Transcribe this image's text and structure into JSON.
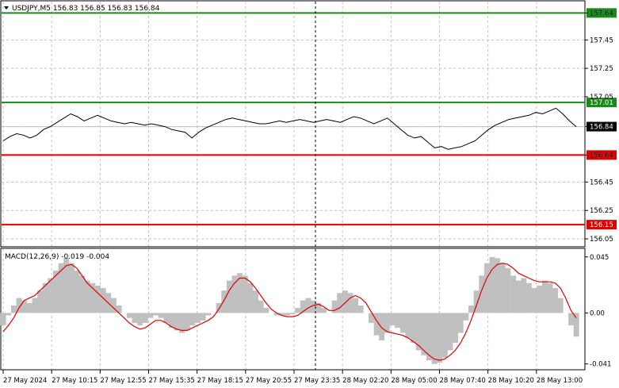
{
  "header": {
    "symbol_line": "USDJPY,M5  156.83 156.85 156.83 156.84"
  },
  "colors": {
    "background": "#ffffff",
    "grid": "#c0c0c0",
    "frame": "#000000",
    "price_line": "#000000",
    "green_level": "#1a8a1a",
    "red_level": "#e00000",
    "histogram": "#c0c0c0",
    "signal": "#e00000",
    "current_price_line": "#c0c0c0"
  },
  "chart_data": [
    {
      "type": "line",
      "name": "price",
      "ylim": [
        156.0,
        157.72
      ],
      "y_ticks": [
        "157.64",
        "157.45",
        "157.25",
        "157.05",
        "156.84",
        "156.64",
        "156.45",
        "156.25",
        "156.05"
      ],
      "levels": [
        {
          "value": 157.64,
          "label": "157.64",
          "color": "#1a8a1a"
        },
        {
          "value": 157.01,
          "label": "157.01",
          "color": "#1a8a1a"
        },
        {
          "value": 156.64,
          "label": "156.64",
          "color": "#e00000"
        },
        {
          "value": 156.15,
          "label": "156.15",
          "color": "#e00000"
        }
      ],
      "current_price": {
        "value": 156.84,
        "label": "156.84"
      },
      "values": [
        156.74,
        156.77,
        156.79,
        156.78,
        156.76,
        156.78,
        156.82,
        156.84,
        156.87,
        156.9,
        156.93,
        156.91,
        156.88,
        156.9,
        156.92,
        156.9,
        156.88,
        156.87,
        156.86,
        156.87,
        156.86,
        156.85,
        156.86,
        156.85,
        156.84,
        156.82,
        156.81,
        156.8,
        156.76,
        156.8,
        156.83,
        156.85,
        156.87,
        156.89,
        156.9,
        156.89,
        156.88,
        156.87,
        156.86,
        156.86,
        156.87,
        156.88,
        156.87,
        156.88,
        156.89,
        156.88,
        156.87,
        156.88,
        156.89,
        156.88,
        156.87,
        156.89,
        156.91,
        156.9,
        156.88,
        156.86,
        156.88,
        156.9,
        156.86,
        156.82,
        156.78,
        156.76,
        156.77,
        156.73,
        156.69,
        156.7,
        156.68,
        156.69,
        156.7,
        156.72,
        156.74,
        156.78,
        156.82,
        156.85,
        156.87,
        156.89,
        156.9,
        156.91,
        156.92,
        156.94,
        156.93,
        156.95,
        156.97,
        156.93,
        156.88,
        156.84
      ],
      "macd": {
        "label": "MACD(12,26,9) -0.019 -0.004",
        "ylim": [
          -0.045,
          0.05
        ],
        "y_ticks": [
          "0.045",
          "0.00",
          "-0.041"
        ],
        "histogram": [
          -0.01,
          -0.002,
          0.006,
          0.012,
          0.01,
          0.008,
          0.012,
          0.018,
          0.024,
          0.028,
          0.034,
          0.04,
          0.044,
          0.04,
          0.034,
          0.03,
          0.026,
          0.024,
          0.022,
          0.02,
          0.016,
          0.012,
          0.006,
          0.0,
          -0.004,
          -0.008,
          -0.01,
          -0.008,
          -0.004,
          -0.002,
          -0.004,
          -0.008,
          -0.012,
          -0.014,
          -0.016,
          -0.014,
          -0.01,
          -0.008,
          -0.006,
          -0.002,
          0.0,
          0.008,
          0.018,
          0.026,
          0.03,
          0.032,
          0.03,
          0.024,
          0.018,
          0.01,
          0.004,
          0.0,
          -0.002,
          -0.002,
          -0.002,
          -0.001,
          0.004,
          0.01,
          0.012,
          0.01,
          0.008,
          0.004,
          0.0,
          0.01,
          0.016,
          0.018,
          0.016,
          0.012,
          0.006,
          0.0,
          -0.008,
          -0.018,
          -0.022,
          -0.016,
          -0.01,
          -0.012,
          -0.016,
          -0.02,
          -0.024,
          -0.03,
          -0.034,
          -0.038,
          -0.041,
          -0.04,
          -0.036,
          -0.03,
          -0.024,
          -0.016,
          -0.006,
          0.006,
          0.018,
          0.03,
          0.04,
          0.045,
          0.044,
          0.04,
          0.036,
          0.03,
          0.026,
          0.028,
          0.024,
          0.02,
          0.022,
          0.026,
          0.024,
          0.02,
          0.012,
          0.0,
          -0.01,
          -0.019
        ],
        "signal": [
          -0.015,
          -0.01,
          -0.004,
          0.004,
          0.01,
          0.012,
          0.014,
          0.018,
          0.022,
          0.026,
          0.03,
          0.034,
          0.038,
          0.039,
          0.036,
          0.03,
          0.024,
          0.02,
          0.016,
          0.012,
          0.008,
          0.004,
          0.0,
          -0.004,
          -0.008,
          -0.011,
          -0.013,
          -0.012,
          -0.009,
          -0.006,
          -0.006,
          -0.008,
          -0.011,
          -0.013,
          -0.014,
          -0.014,
          -0.012,
          -0.01,
          -0.008,
          -0.006,
          -0.003,
          0.003,
          0.01,
          0.018,
          0.024,
          0.028,
          0.028,
          0.025,
          0.02,
          0.014,
          0.008,
          0.003,
          0.0,
          -0.002,
          -0.003,
          -0.003,
          -0.002,
          0.001,
          0.004,
          0.006,
          0.007,
          0.005,
          0.002,
          0.002,
          0.004,
          0.008,
          0.012,
          0.014,
          0.012,
          0.008,
          0.001,
          -0.006,
          -0.012,
          -0.015,
          -0.016,
          -0.017,
          -0.018,
          -0.02,
          -0.023,
          -0.026,
          -0.03,
          -0.034,
          -0.037,
          -0.038,
          -0.037,
          -0.034,
          -0.03,
          -0.024,
          -0.016,
          -0.006,
          0.006,
          0.018,
          0.028,
          0.035,
          0.039,
          0.04,
          0.039,
          0.036,
          0.032,
          0.03,
          0.028,
          0.026,
          0.025,
          0.025,
          0.025,
          0.024,
          0.02,
          0.012,
          0.002,
          -0.004
        ]
      },
      "x_ticks": [
        "27 May 2024",
        "27 May 10:15",
        "27 May 12:55",
        "27 May 15:35",
        "27 May 18:15",
        "27 May 20:55",
        "27 May 23:35",
        "28 May 02:20",
        "28 May 05:00",
        "28 May 07:40",
        "28 May 10:20",
        "28 May 13:00"
      ]
    }
  ]
}
